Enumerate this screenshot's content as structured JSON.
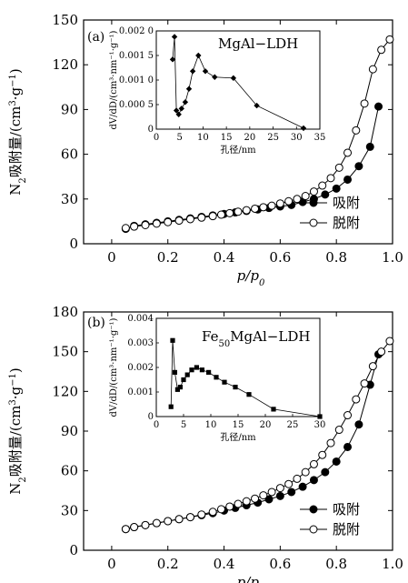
{
  "chart_data": [
    {
      "type": "line",
      "panel_label": "(a)",
      "xlabel_parts": [
        "p",
        "/",
        "p",
        "0"
      ],
      "ylabel_parts": [
        "N",
        "2",
        "吸附量/(cm",
        "3",
        "·g",
        "−1",
        ")"
      ],
      "xlim": [
        -0.1,
        1.0
      ],
      "ylim": [
        0,
        150
      ],
      "xticks": [
        "0",
        "0.2",
        "0.4",
        "0.6",
        "0.8",
        "1.0"
      ],
      "xtick_values": [
        0,
        0.2,
        0.4,
        0.6,
        0.8,
        1.0
      ],
      "yticks": [
        "0",
        "30",
        "60",
        "90",
        "120",
        "150"
      ],
      "ytick_values": [
        0,
        30,
        60,
        90,
        120,
        150
      ],
      "series": [
        {
          "name": "吸附",
          "marker": "filled-circle",
          "x": [
            0.05,
            0.08,
            0.12,
            0.16,
            0.2,
            0.24,
            0.28,
            0.32,
            0.36,
            0.4,
            0.44,
            0.48,
            0.52,
            0.56,
            0.6,
            0.64,
            0.68,
            0.72,
            0.76,
            0.8,
            0.84,
            0.88,
            0.92,
            0.95
          ],
          "y": [
            10,
            12,
            13,
            14,
            15,
            16,
            17,
            18,
            19,
            20,
            21,
            22,
            23,
            24,
            25,
            26,
            28,
            30,
            33,
            37,
            43,
            52,
            65,
            92
          ]
        },
        {
          "name": "脱附",
          "marker": "open-circle",
          "x": [
            0.99,
            0.96,
            0.93,
            0.9,
            0.87,
            0.84,
            0.81,
            0.78,
            0.75,
            0.72,
            0.69,
            0.66,
            0.63,
            0.6,
            0.57,
            0.54,
            0.51,
            0.48,
            0.45,
            0.42,
            0.39,
            0.36,
            0.32,
            0.28,
            0.24,
            0.2,
            0.16,
            0.12,
            0.08,
            0.05
          ],
          "y": [
            137,
            130,
            117,
            94,
            76,
            61,
            51,
            44,
            39,
            35,
            32,
            30,
            28.5,
            27,
            25.5,
            24.5,
            23.5,
            22.5,
            21.5,
            20.5,
            19.5,
            18.5,
            17.5,
            16.5,
            15.5,
            14.5,
            13.5,
            12.5,
            11.5,
            10.5
          ]
        }
      ],
      "legend_position": "lower-right",
      "inset": {
        "title": "MgAl−LDH",
        "xlabel": "孔径/nm",
        "ylabel": "dV/dD/(cm³·nm⁻¹·g⁻¹)",
        "xlim": [
          0,
          35
        ],
        "ylim": [
          0,
          0.002
        ],
        "xticks": [
          "0",
          "5",
          "10",
          "15",
          "20",
          "25",
          "30",
          "35"
        ],
        "xtick_values": [
          0,
          5,
          10,
          15,
          20,
          25,
          30,
          35
        ],
        "yticks": [
          "0",
          "0.000 5",
          "0.001 0",
          "0.001 5",
          "0.002 0"
        ],
        "ytick_values": [
          0,
          0.0005,
          0.001,
          0.0015,
          0.002
        ],
        "marker": "filled-diamond",
        "x": [
          3.5,
          3.9,
          4.3,
          4.8,
          5.4,
          6.2,
          7.0,
          7.8,
          9.0,
          10.5,
          12.5,
          16.5,
          21.5,
          31.5
        ],
        "y": [
          0.00142,
          0.00188,
          0.00038,
          0.0003,
          0.00042,
          0.00055,
          0.00082,
          0.00118,
          0.0015,
          0.00118,
          0.00106,
          0.00104,
          0.00048,
          2e-05
        ]
      }
    },
    {
      "type": "line",
      "panel_label": "(b)",
      "xlabel_parts": [
        "p",
        "/",
        "p",
        "0"
      ],
      "ylabel_parts": [
        "N",
        "2",
        "吸附量/(cm",
        "3",
        "·g",
        "−1",
        ")"
      ],
      "xlim": [
        -0.1,
        1.0
      ],
      "ylim": [
        0,
        180
      ],
      "xticks": [
        "0",
        "0.2",
        "0.4",
        "0.6",
        "0.8",
        "1.0"
      ],
      "xtick_values": [
        0,
        0.2,
        0.4,
        0.6,
        0.8,
        1.0
      ],
      "yticks": [
        "0",
        "30",
        "60",
        "90",
        "120",
        "150",
        "180"
      ],
      "ytick_values": [
        0,
        30,
        60,
        90,
        120,
        150,
        180
      ],
      "series": [
        {
          "name": "吸附",
          "marker": "filled-circle",
          "x": [
            0.05,
            0.08,
            0.12,
            0.16,
            0.2,
            0.24,
            0.28,
            0.32,
            0.36,
            0.4,
            0.44,
            0.48,
            0.52,
            0.56,
            0.6,
            0.64,
            0.68,
            0.72,
            0.76,
            0.8,
            0.84,
            0.88,
            0.92,
            0.95
          ],
          "y": [
            16,
            17.5,
            19,
            20.5,
            22,
            23.5,
            25,
            26.5,
            28,
            30,
            32,
            34,
            36,
            38.5,
            41,
            44,
            48,
            53,
            59,
            67,
            78,
            95,
            125,
            148
          ]
        },
        {
          "name": "脱附",
          "marker": "open-circle",
          "x": [
            0.99,
            0.96,
            0.93,
            0.9,
            0.87,
            0.84,
            0.81,
            0.78,
            0.75,
            0.72,
            0.69,
            0.66,
            0.63,
            0.6,
            0.57,
            0.54,
            0.51,
            0.48,
            0.45,
            0.42,
            0.39,
            0.36,
            0.32,
            0.28,
            0.24,
            0.2,
            0.16,
            0.12,
            0.08,
            0.05
          ],
          "y": [
            158,
            150,
            139,
            126,
            114,
            102,
            91,
            81,
            72,
            65,
            59,
            54,
            50,
            47,
            44,
            41.5,
            39,
            37,
            35,
            33,
            31,
            29,
            27,
            25,
            23.5,
            22,
            20.5,
            19,
            17.5,
            16
          ]
        }
      ],
      "legend_position": "lower-right",
      "inset": {
        "title_parts": [
          "Fe",
          "50",
          "MgAl−LDH"
        ],
        "xlabel": "孔径/nm",
        "ylabel": "dV/dD/(cm³·nm⁻¹·g⁻¹)",
        "xlim": [
          0,
          30
        ],
        "ylim": [
          0,
          0.004
        ],
        "xticks": [
          "0",
          "5",
          "10",
          "15",
          "20",
          "25",
          "30"
        ],
        "xtick_values": [
          0,
          5,
          10,
          15,
          20,
          25,
          30
        ],
        "yticks": [
          "0",
          "0.001",
          "0.002",
          "0.003",
          "0.004"
        ],
        "ytick_values": [
          0,
          0.001,
          0.002,
          0.003,
          0.004
        ],
        "marker": "filled-square",
        "x": [
          2.7,
          3.0,
          3.4,
          3.9,
          4.4,
          5.0,
          5.7,
          6.5,
          7.4,
          8.4,
          9.6,
          11.0,
          12.5,
          14.5,
          17.0,
          21.5,
          30.0
        ],
        "y": [
          0.0004,
          0.0031,
          0.0018,
          0.0011,
          0.0012,
          0.0015,
          0.0017,
          0.0019,
          0.002,
          0.0019,
          0.0018,
          0.0016,
          0.0014,
          0.0012,
          0.0009,
          0.0003,
          0.0
        ]
      }
    }
  ]
}
